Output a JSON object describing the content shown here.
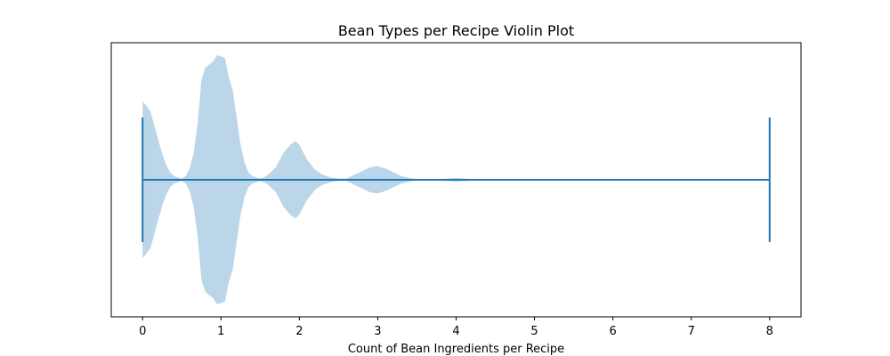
{
  "chart_data": {
    "type": "violin",
    "title": "Bean Types per Recipe Violin Plot",
    "xlabel": "Count of Bean Ingredients per Recipe",
    "ylabel": "",
    "orientation": "horizontal",
    "xlim": [
      -0.4,
      8.4
    ],
    "xticks": [
      0,
      1,
      2,
      3,
      4,
      5,
      6,
      7,
      8
    ],
    "xtick_labels": [
      "0",
      "1",
      "2",
      "3",
      "4",
      "5",
      "6",
      "7",
      "8"
    ],
    "grid": false,
    "legend": "none",
    "range": {
      "min": 0,
      "max": 8
    },
    "density": {
      "x": [
        0,
        0.1,
        0.2,
        0.25,
        0.3,
        0.35,
        0.4,
        0.45,
        0.5,
        0.55,
        0.6,
        0.65,
        0.7,
        0.75,
        0.8,
        0.9,
        0.95,
        1.0,
        1.05,
        1.1,
        1.15,
        1.2,
        1.25,
        1.3,
        1.35,
        1.4,
        1.45,
        1.5,
        1.55,
        1.6,
        1.7,
        1.8,
        1.9,
        1.95,
        2.0,
        2.05,
        2.1,
        2.2,
        2.3,
        2.4,
        2.5,
        2.6,
        2.7,
        2.8,
        2.9,
        3.0,
        3.1,
        3.2,
        3.3,
        3.4,
        3.5,
        3.7,
        3.9,
        4.0,
        4.1,
        4.3,
        4.5,
        5.0,
        6.0,
        7.0,
        8.0
      ],
      "half_width": [
        0.63,
        0.55,
        0.32,
        0.21,
        0.12,
        0.06,
        0.03,
        0.02,
        0.01,
        0.03,
        0.09,
        0.21,
        0.44,
        0.8,
        0.9,
        0.95,
        1.0,
        0.99,
        0.98,
        0.82,
        0.72,
        0.5,
        0.28,
        0.14,
        0.06,
        0.03,
        0.02,
        0.01,
        0.02,
        0.04,
        0.1,
        0.22,
        0.29,
        0.31,
        0.28,
        0.22,
        0.16,
        0.08,
        0.04,
        0.02,
        0.01,
        0.01,
        0.04,
        0.07,
        0.1,
        0.11,
        0.09,
        0.06,
        0.03,
        0.015,
        0.005,
        0.002,
        0.01,
        0.015,
        0.01,
        0.003,
        0.001,
        0.0005,
        0.0003,
        0.0002,
        0.0001
      ]
    },
    "colors": {
      "body": "#1f77b4",
      "body_opacity": 0.3,
      "lines": "#1f77b4",
      "axes": "#000000",
      "background": "#ffffff"
    }
  }
}
